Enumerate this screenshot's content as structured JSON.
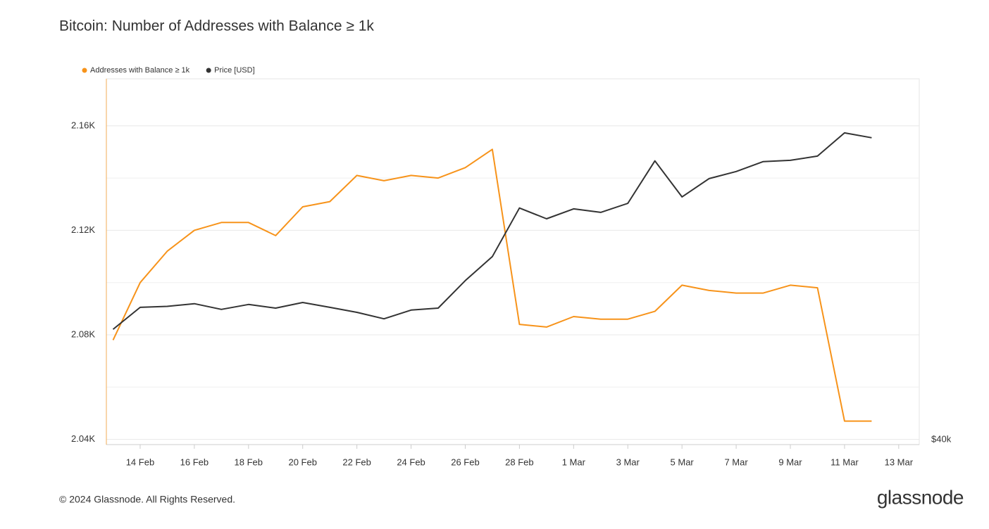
{
  "chart_data": {
    "type": "line",
    "title": "Bitcoin: Number of Addresses with Balance ≥ 1k",
    "footer": "© 2024 Glassnode. All Rights Reserved.",
    "brand": "glassnode",
    "categories": [
      null,
      "14 Feb",
      null,
      "16 Feb",
      null,
      "18 Feb",
      null,
      "20 Feb",
      null,
      "22 Feb",
      null,
      "24 Feb",
      null,
      "26 Feb",
      null,
      "28 Feb",
      null,
      "1 Mar",
      null,
      "3 Mar",
      null,
      "5 Mar",
      null,
      "7 Mar",
      null,
      "9 Mar",
      null,
      "11 Mar",
      null,
      "13 Mar"
    ],
    "series": [
      {
        "name": "Addresses with Balance ≥ 1k",
        "color": "#f7931a",
        "axis": "y",
        "values": [
          2078,
          2100,
          2112,
          2120,
          2123,
          2123,
          2118,
          2129,
          2131,
          2141,
          2139,
          2141,
          2140,
          2144,
          2151,
          2084,
          2083,
          2087,
          2086,
          2086,
          2089,
          2099,
          2097,
          2096,
          2096,
          2099,
          2098,
          2047,
          2047,
          null
        ]
      },
      {
        "name": "Price [USD]",
        "color": "#333333",
        "axis": "y2",
        "values": [
          49470,
          51600,
          51700,
          51970,
          51400,
          51890,
          51530,
          52090,
          51600,
          51110,
          50480,
          51330,
          51530,
          54330,
          56900,
          62480,
          61200,
          62380,
          61960,
          63040,
          68410,
          63830,
          66120,
          67030,
          68320,
          68490,
          69050,
          72200,
          71530,
          null
        ]
      }
    ],
    "ylim": [
      2038,
      2178
    ],
    "yticks": [
      {
        "value": 2040,
        "label": "2.04K"
      },
      {
        "value": 2080,
        "label": "2.08K"
      },
      {
        "value": 2120,
        "label": "2.12K"
      },
      {
        "value": 2160,
        "label": "2.16K"
      }
    ],
    "y_minor_ticks": [
      2060,
      2100,
      2140
    ],
    "y2lim": [
      39620,
      80130
    ],
    "y2_log": true,
    "y2ticks": [
      {
        "value": 40000,
        "label": "$40k"
      }
    ],
    "grid": true,
    "legend": "top-left"
  }
}
